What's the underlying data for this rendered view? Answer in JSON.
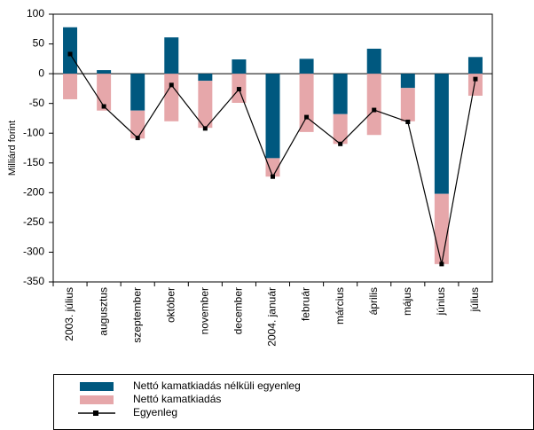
{
  "chart_data": {
    "type": "bar",
    "y_label": "Milliárd forint",
    "categories": [
      "2003. július",
      "augusztus",
      "szeptember",
      "október",
      "november",
      "december",
      "2004. január",
      "február",
      "március",
      "április",
      "május",
      "június",
      "július"
    ],
    "series": [
      {
        "name": "Nettó kamatkiadás nélküli egyenleg",
        "color": "#00587f",
        "kind": "bar",
        "values": [
          78,
          6,
          -62,
          61,
          -12,
          24,
          -142,
          25,
          -68,
          42,
          -24,
          -202,
          28
        ]
      },
      {
        "name": "Nettó kamatkiadás",
        "color": "#e6a7aa",
        "kind": "bar",
        "values": [
          -43,
          -62,
          -47,
          -80,
          -79,
          -49,
          -31,
          -98,
          -50,
          -103,
          -56,
          -118,
          -37
        ]
      },
      {
        "name": "Egyenleg",
        "color": "#000000",
        "kind": "line",
        "values": [
          33,
          -55,
          -108,
          -19,
          -92,
          -26,
          -173,
          -73,
          -118,
          -61,
          -81,
          -320,
          -9
        ]
      }
    ],
    "stacked": true,
    "ylim": [
      -350,
      100
    ],
    "yticks": [
      -350,
      -300,
      -250,
      -200,
      -150,
      -100,
      -50,
      0,
      50,
      100
    ]
  }
}
